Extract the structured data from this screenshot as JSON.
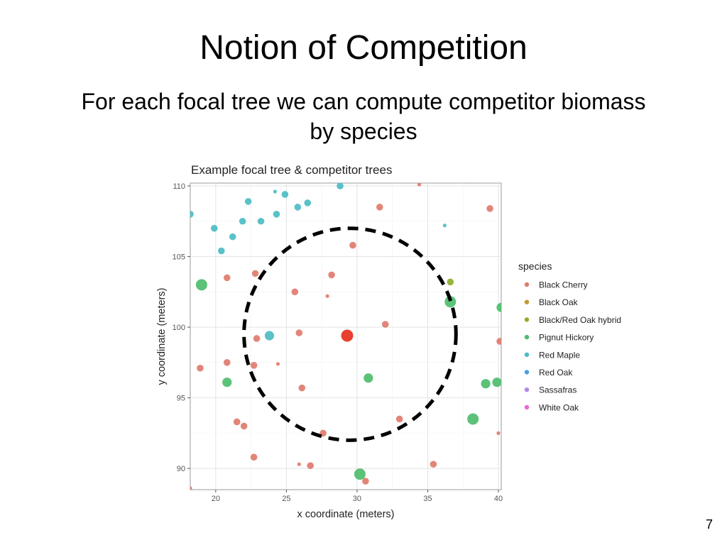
{
  "slide": {
    "title": "Notion of Competition",
    "subtitle": "For each focal tree we can compute competitor biomass by species",
    "page_number": "7"
  },
  "chart_data": {
    "type": "scatter",
    "title": "Example focal tree & competitor trees",
    "xlabel": "x coordinate (meters)",
    "ylabel": "y coordinate (meters)",
    "xlim": [
      18.2,
      40.2
    ],
    "ylim": [
      88.5,
      110.2
    ],
    "xticks": [
      20,
      25,
      30,
      35,
      40
    ],
    "yticks": [
      90,
      95,
      100,
      105,
      110
    ],
    "grid": true,
    "legend_title": "species",
    "legend_position": "right",
    "species": [
      {
        "name": "Black Cherry",
        "color": "#e07b6e"
      },
      {
        "name": "Black Oak",
        "color": "#c49a2c"
      },
      {
        "name": "Black/Red Oak hybrid",
        "color": "#8fad2d"
      },
      {
        "name": "Pignut Hickory",
        "color": "#4dbd6d"
      },
      {
        "name": "Red Maple",
        "color": "#4cbcc4"
      },
      {
        "name": "Red Oak",
        "color": "#4a9ee6"
      },
      {
        "name": "Sassafras",
        "color": "#b288e8"
      },
      {
        "name": "White Oak",
        "color": "#e667d8"
      }
    ],
    "focal_tree": {
      "x": 29.3,
      "y": 99.4,
      "size": 3,
      "color": "#e8402e"
    },
    "competition_radius": {
      "x": 29.5,
      "y": 99.5,
      "r": 7.5
    },
    "points": [
      {
        "x": 34.4,
        "y": 110.1,
        "species": "Black Cherry",
        "size": 0
      },
      {
        "x": 31.6,
        "y": 108.5,
        "species": "Black Cherry",
        "size": 1
      },
      {
        "x": 39.4,
        "y": 108.4,
        "species": "Black Cherry",
        "size": 1
      },
      {
        "x": 29.7,
        "y": 105.8,
        "species": "Black Cherry",
        "size": 1
      },
      {
        "x": 22.8,
        "y": 103.8,
        "species": "Black Cherry",
        "size": 1
      },
      {
        "x": 28.2,
        "y": 103.7,
        "species": "Black Cherry",
        "size": 1
      },
      {
        "x": 20.8,
        "y": 103.5,
        "species": "Black Cherry",
        "size": 1
      },
      {
        "x": 25.6,
        "y": 102.5,
        "species": "Black Cherry",
        "size": 1
      },
      {
        "x": 27.9,
        "y": 102.2,
        "species": "Black Cherry",
        "size": 0
      },
      {
        "x": 22.3,
        "y": 101.6,
        "species": "Black Cherry",
        "size": 0
      },
      {
        "x": 32.0,
        "y": 100.2,
        "species": "Black Cherry",
        "size": 1
      },
      {
        "x": 25.9,
        "y": 99.6,
        "species": "Black Cherry",
        "size": 1
      },
      {
        "x": 22.9,
        "y": 99.2,
        "species": "Black Cherry",
        "size": 1
      },
      {
        "x": 40.1,
        "y": 99.0,
        "species": "Black Cherry",
        "size": 1
      },
      {
        "x": 20.8,
        "y": 97.5,
        "species": "Black Cherry",
        "size": 1
      },
      {
        "x": 24.4,
        "y": 97.4,
        "species": "Black Cherry",
        "size": 0
      },
      {
        "x": 22.7,
        "y": 97.3,
        "species": "Black Cherry",
        "size": 1
      },
      {
        "x": 18.9,
        "y": 97.1,
        "species": "Black Cherry",
        "size": 1
      },
      {
        "x": 26.1,
        "y": 95.7,
        "species": "Black Cherry",
        "size": 1
      },
      {
        "x": 33.0,
        "y": 93.5,
        "species": "Black Cherry",
        "size": 1
      },
      {
        "x": 21.5,
        "y": 93.3,
        "species": "Black Cherry",
        "size": 1
      },
      {
        "x": 22.0,
        "y": 93.0,
        "species": "Black Cherry",
        "size": 1
      },
      {
        "x": 26.1,
        "y": 92.8,
        "species": "Black Cherry",
        "size": 0
      },
      {
        "x": 27.6,
        "y": 92.5,
        "species": "Black Cherry",
        "size": 1
      },
      {
        "x": 40.0,
        "y": 92.5,
        "species": "Black Cherry",
        "size": 0
      },
      {
        "x": 22.7,
        "y": 90.8,
        "species": "Black Cherry",
        "size": 1
      },
      {
        "x": 25.9,
        "y": 90.3,
        "species": "Black Cherry",
        "size": 0
      },
      {
        "x": 26.7,
        "y": 90.2,
        "species": "Black Cherry",
        "size": 1
      },
      {
        "x": 35.4,
        "y": 90.3,
        "species": "Black Cherry",
        "size": 1
      },
      {
        "x": 30.6,
        "y": 89.1,
        "species": "Black Cherry",
        "size": 1
      },
      {
        "x": 18.2,
        "y": 88.6,
        "species": "Black Cherry",
        "size": 0
      },
      {
        "x": 36.6,
        "y": 103.2,
        "species": "Black/Red Oak hybrid",
        "size": 1
      },
      {
        "x": 19.0,
        "y": 103.0,
        "species": "Pignut Hickory",
        "size": 3
      },
      {
        "x": 36.6,
        "y": 101.8,
        "species": "Pignut Hickory",
        "size": 3
      },
      {
        "x": 40.2,
        "y": 101.4,
        "species": "Pignut Hickory",
        "size": 2
      },
      {
        "x": 30.8,
        "y": 96.4,
        "species": "Pignut Hickory",
        "size": 2
      },
      {
        "x": 20.8,
        "y": 96.1,
        "species": "Pignut Hickory",
        "size": 2
      },
      {
        "x": 39.1,
        "y": 96.0,
        "species": "Pignut Hickory",
        "size": 2
      },
      {
        "x": 39.9,
        "y": 96.1,
        "species": "Pignut Hickory",
        "size": 2
      },
      {
        "x": 38.2,
        "y": 93.5,
        "species": "Pignut Hickory",
        "size": 3
      },
      {
        "x": 30.2,
        "y": 89.6,
        "species": "Pignut Hickory",
        "size": 3
      },
      {
        "x": 28.8,
        "y": 110.0,
        "species": "Red Maple",
        "size": 1
      },
      {
        "x": 24.2,
        "y": 109.6,
        "species": "Red Maple",
        "size": 0
      },
      {
        "x": 24.9,
        "y": 109.4,
        "species": "Red Maple",
        "size": 1
      },
      {
        "x": 22.3,
        "y": 108.9,
        "species": "Red Maple",
        "size": 1
      },
      {
        "x": 26.5,
        "y": 108.8,
        "species": "Red Maple",
        "size": 1
      },
      {
        "x": 25.8,
        "y": 108.5,
        "species": "Red Maple",
        "size": 1
      },
      {
        "x": 18.2,
        "y": 108.0,
        "species": "Red Maple",
        "size": 1
      },
      {
        "x": 24.3,
        "y": 108.0,
        "species": "Red Maple",
        "size": 1
      },
      {
        "x": 21.9,
        "y": 107.5,
        "species": "Red Maple",
        "size": 1
      },
      {
        "x": 23.2,
        "y": 107.5,
        "species": "Red Maple",
        "size": 1
      },
      {
        "x": 36.2,
        "y": 107.2,
        "species": "Red Maple",
        "size": 0
      },
      {
        "x": 19.9,
        "y": 107.0,
        "species": "Red Maple",
        "size": 1
      },
      {
        "x": 21.2,
        "y": 106.4,
        "species": "Red Maple",
        "size": 1
      },
      {
        "x": 20.4,
        "y": 105.4,
        "species": "Red Maple",
        "size": 1
      },
      {
        "x": 23.8,
        "y": 99.4,
        "species": "Red Maple",
        "size": 2
      }
    ]
  }
}
